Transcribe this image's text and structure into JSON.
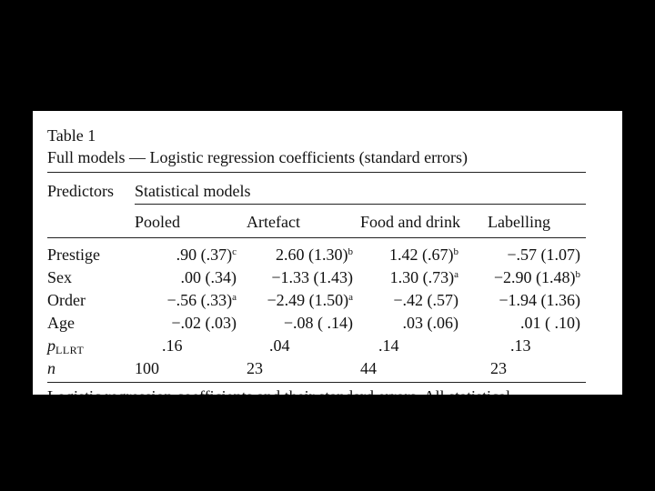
{
  "table": {
    "caption_label": "Table 1",
    "caption_title": "Full models — Logistic regression coefficients (standard errors)",
    "col_header_predictors": "Predictors",
    "col_header_models": "Statistical models",
    "model_columns": [
      "Pooled",
      "Artefact",
      "Food and drink",
      "Labelling"
    ],
    "rows": [
      {
        "label": "Prestige",
        "cells": [
          {
            "value": ".90 (.37)",
            "sup": "c"
          },
          {
            "value": "2.60 (1.30)",
            "sup": "b"
          },
          {
            "value": "1.42 (.67)",
            "sup": "b"
          },
          {
            "value": "−.57 (1.07)",
            "sup": ""
          }
        ]
      },
      {
        "label": "Sex",
        "cells": [
          {
            "value": ".00 (.34)",
            "sup": ""
          },
          {
            "value": "−1.33 (1.43)",
            "sup": ""
          },
          {
            "value": "1.30 (.73)",
            "sup": "a"
          },
          {
            "value": "−2.90 (1.48)",
            "sup": "b"
          }
        ]
      },
      {
        "label": "Order",
        "cells": [
          {
            "value": "−.56 (.33)",
            "sup": "a"
          },
          {
            "value": "−2.49 (1.50)",
            "sup": "a"
          },
          {
            "value": "−.42 (.57)",
            "sup": ""
          },
          {
            "value": "−1.94 (1.36)",
            "sup": ""
          }
        ]
      },
      {
        "label": "Age",
        "cells": [
          {
            "value": "−.02 (.03)",
            "sup": ""
          },
          {
            "value": "−.08 ( .14)",
            "sup": ""
          },
          {
            "value": ".03 (.06)",
            "sup": ""
          },
          {
            "value": ".01 ( .10)",
            "sup": ""
          }
        ]
      },
      {
        "label_main": "p",
        "label_sub": "LLRT",
        "cells": [
          {
            "value": ".16",
            "sup": ""
          },
          {
            "value": ".04",
            "sup": ""
          },
          {
            "value": ".14",
            "sup": ""
          },
          {
            "value": ".13",
            "sup": ""
          }
        ]
      },
      {
        "label": "n",
        "cells": [
          {
            "value": "100",
            "sup": ""
          },
          {
            "value": "23",
            "sup": ""
          },
          {
            "value": "44",
            "sup": ""
          },
          {
            "value": "23",
            "sup": ""
          }
        ]
      }
    ],
    "footnote_cut": "Logistic regression coefficients and their standard errors. All statistical"
  }
}
